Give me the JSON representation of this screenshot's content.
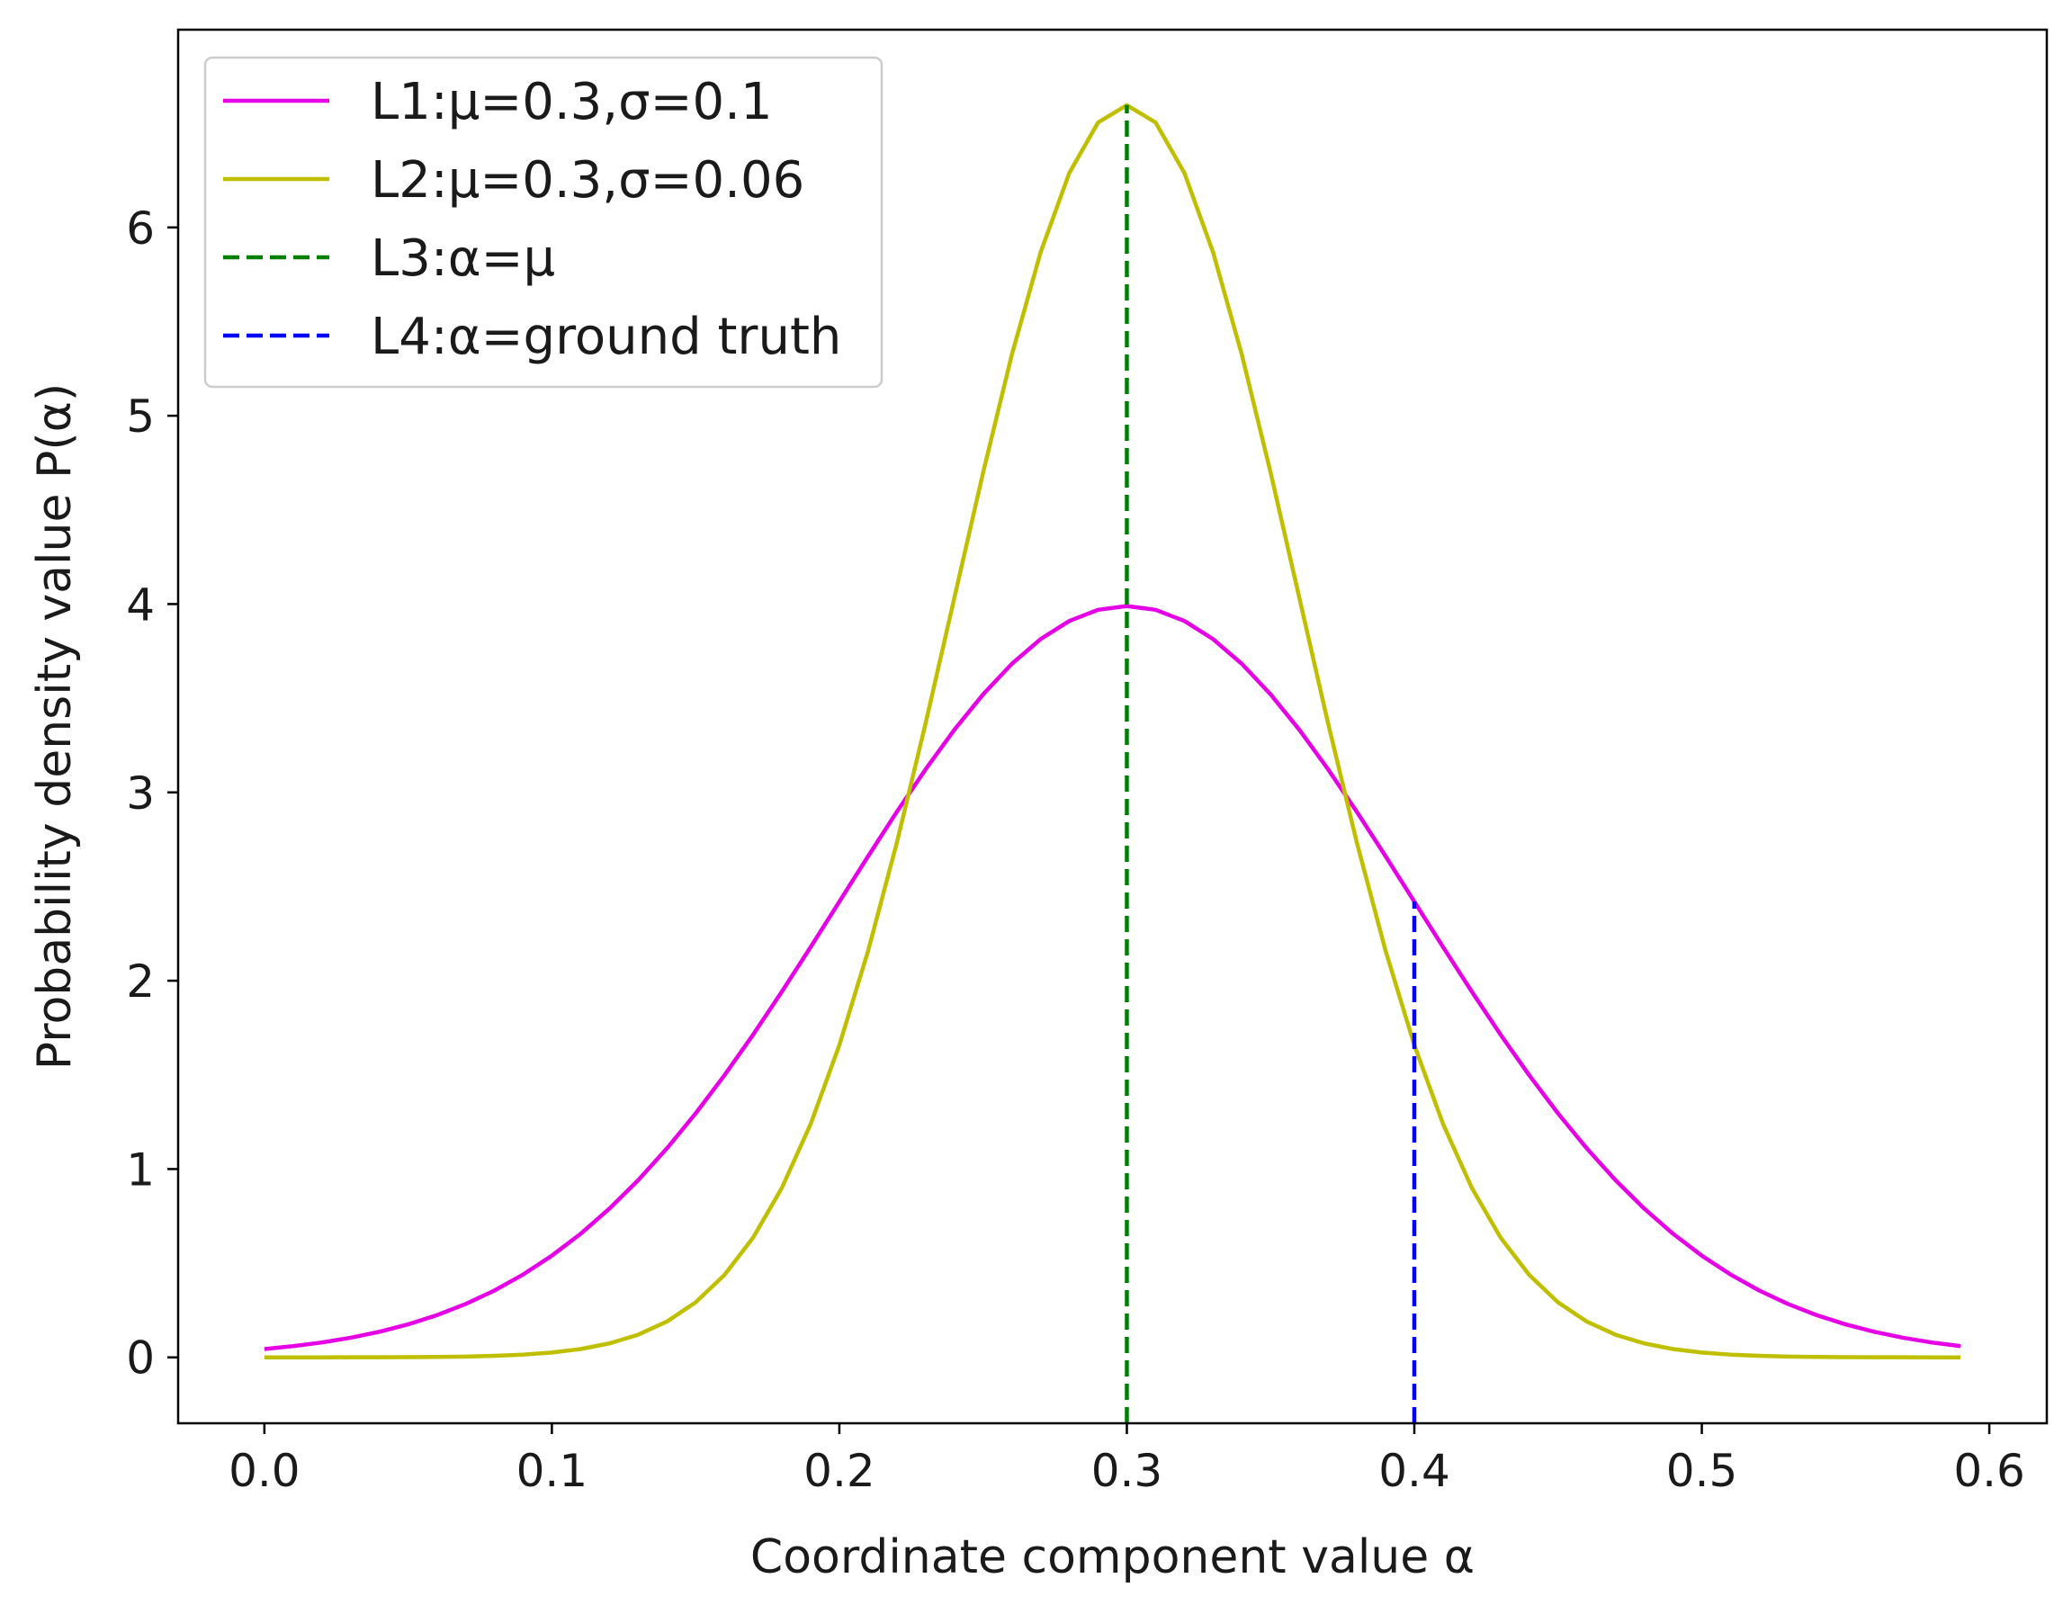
{
  "chart_data": {
    "type": "line",
    "title": "",
    "xlabel": "Coordinate component value α",
    "ylabel": "Probability density value P(α)",
    "xlim": [
      -0.03,
      0.62
    ],
    "ylim": [
      -0.35,
      7.05
    ],
    "xticks": [
      0.0,
      0.1,
      0.2,
      0.3,
      0.4,
      0.5,
      0.6
    ],
    "xtick_labels": [
      "0.0",
      "0.1",
      "0.2",
      "0.3",
      "0.4",
      "0.5",
      "0.6"
    ],
    "yticks": [
      0,
      1,
      2,
      3,
      4,
      5,
      6
    ],
    "ytick_labels": [
      "0",
      "1",
      "2",
      "3",
      "4",
      "5",
      "6"
    ],
    "legend_position": "top-left",
    "series": [
      {
        "name": "L1:μ=0.3,σ=0.1",
        "kind": "gaussian",
        "mu": 0.3,
        "sigma": 0.1,
        "x_start": 0.0,
        "x_end": 0.59,
        "x_step": 0.01,
        "color": "#e600e6",
        "style": "solid"
      },
      {
        "name": "L2:μ=0.3,σ=0.06",
        "kind": "gaussian",
        "mu": 0.3,
        "sigma": 0.06,
        "x_start": 0.0,
        "x_end": 0.59,
        "x_step": 0.01,
        "color": "#bfbf00",
        "style": "solid"
      },
      {
        "name": "L3:α=μ",
        "kind": "vline",
        "x": 0.3,
        "y_from": -0.35,
        "y_to": 6.65,
        "color": "#008000",
        "style": "dashed"
      },
      {
        "name": "L4:α=ground truth",
        "kind": "vline",
        "x": 0.4,
        "y_from": -0.35,
        "y_to": 2.42,
        "color": "#0000ff",
        "style": "dashed"
      }
    ]
  }
}
